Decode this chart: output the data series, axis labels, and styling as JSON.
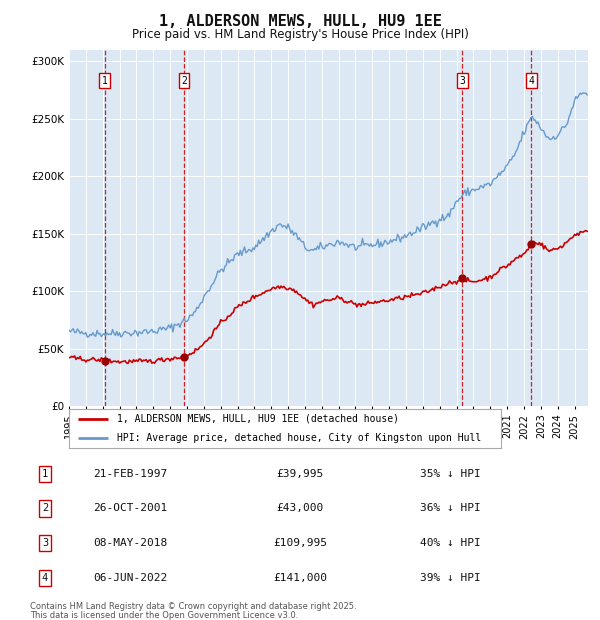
{
  "title": "1, ALDERSON MEWS, HULL, HU9 1EE",
  "subtitle": "Price paid vs. HM Land Registry's House Price Index (HPI)",
  "title_fontsize": 11,
  "subtitle_fontsize": 8.5,
  "background_color": "#ffffff",
  "plot_bg_color": "#dce9f5",
  "grid_color": "#ffffff",
  "legend_label_red": "1, ALDERSON MEWS, HULL, HU9 1EE (detached house)",
  "legend_label_blue": "HPI: Average price, detached house, City of Kingston upon Hull",
  "footer_line1": "Contains HM Land Registry data © Crown copyright and database right 2025.",
  "footer_line2": "This data is licensed under the Open Government Licence v3.0.",
  "transactions": [
    {
      "num": 1,
      "date": "21-FEB-1997",
      "price": 39995,
      "pct": "35%",
      "year": 1997.12
    },
    {
      "num": 2,
      "date": "26-OCT-2001",
      "price": 43000,
      "pct": "36%",
      "year": 2001.82
    },
    {
      "num": 3,
      "date": "08-MAY-2018",
      "price": 109995,
      "pct": "40%",
      "year": 2018.35
    },
    {
      "num": 4,
      "date": "06-JUN-2022",
      "price": 141000,
      "pct": "39%",
      "year": 2022.43
    }
  ],
  "ylim": [
    0,
    310000
  ],
  "xlim_start": 1995.0,
  "xlim_end": 2025.8,
  "yticks": [
    0,
    50000,
    100000,
    150000,
    200000,
    250000,
    300000
  ],
  "ytick_labels": [
    "£0",
    "£50K",
    "£100K",
    "£150K",
    "£200K",
    "£250K",
    "£300K"
  ],
  "xtick_years": [
    1995,
    1996,
    1997,
    1998,
    1999,
    2000,
    2001,
    2002,
    2003,
    2004,
    2005,
    2006,
    2007,
    2008,
    2009,
    2010,
    2011,
    2012,
    2013,
    2014,
    2015,
    2016,
    2017,
    2018,
    2019,
    2020,
    2021,
    2022,
    2023,
    2024,
    2025
  ],
  "red_color": "#cc0000",
  "blue_color": "#6699cc",
  "dashed_color": "#cc0000",
  "marker_color": "#990000",
  "hpi_anchors": [
    [
      1995.0,
      65000
    ],
    [
      1996.0,
      63500
    ],
    [
      1997.0,
      63000
    ],
    [
      1998.0,
      63500
    ],
    [
      1999.0,
      64000
    ],
    [
      2000.0,
      65000
    ],
    [
      2001.0,
      68000
    ],
    [
      2002.0,
      75000
    ],
    [
      2002.5,
      82000
    ],
    [
      2003.0,
      95000
    ],
    [
      2004.0,
      118000
    ],
    [
      2005.0,
      132000
    ],
    [
      2006.0,
      138000
    ],
    [
      2007.0,
      152000
    ],
    [
      2007.5,
      158000
    ],
    [
      2008.0,
      155000
    ],
    [
      2008.5,
      148000
    ],
    [
      2009.0,
      138000
    ],
    [
      2009.5,
      135000
    ],
    [
      2010.0,
      138000
    ],
    [
      2011.0,
      143000
    ],
    [
      2012.0,
      138000
    ],
    [
      2013.0,
      140000
    ],
    [
      2014.0,
      143000
    ],
    [
      2015.0,
      148000
    ],
    [
      2016.0,
      155000
    ],
    [
      2017.0,
      163000
    ],
    [
      2017.5,
      165000
    ],
    [
      2018.0,
      178000
    ],
    [
      2018.5,
      185000
    ],
    [
      2019.0,
      188000
    ],
    [
      2020.0,
      193000
    ],
    [
      2021.0,
      208000
    ],
    [
      2021.5,
      220000
    ],
    [
      2022.0,
      238000
    ],
    [
      2022.5,
      252000
    ],
    [
      2023.0,
      242000
    ],
    [
      2023.5,
      232000
    ],
    [
      2024.0,
      236000
    ],
    [
      2024.5,
      244000
    ],
    [
      2025.0,
      265000
    ],
    [
      2025.4,
      272000
    ]
  ],
  "red_anchors": [
    [
      1995.0,
      42000
    ],
    [
      1996.0,
      40500
    ],
    [
      1997.12,
      39995
    ],
    [
      1998.0,
      38500
    ],
    [
      1999.0,
      38800
    ],
    [
      2000.0,
      39200
    ],
    [
      2001.82,
      43000
    ],
    [
      2002.5,
      48000
    ],
    [
      2003.0,
      54000
    ],
    [
      2004.0,
      72000
    ],
    [
      2005.0,
      86000
    ],
    [
      2006.0,
      95000
    ],
    [
      2007.0,
      102000
    ],
    [
      2007.5,
      104000
    ],
    [
      2008.0,
      103000
    ],
    [
      2008.5,
      100000
    ],
    [
      2009.0,
      93000
    ],
    [
      2009.5,
      88000
    ],
    [
      2010.0,
      91000
    ],
    [
      2011.0,
      94000
    ],
    [
      2011.5,
      91500
    ],
    [
      2012.0,
      88500
    ],
    [
      2012.5,
      88000
    ],
    [
      2013.0,
      90000
    ],
    [
      2014.0,
      92000
    ],
    [
      2015.0,
      95000
    ],
    [
      2016.0,
      98000
    ],
    [
      2017.0,
      104000
    ],
    [
      2017.5,
      107000
    ],
    [
      2018.35,
      109995
    ],
    [
      2018.5,
      109500
    ],
    [
      2019.0,
      108000
    ],
    [
      2019.5,
      110000
    ],
    [
      2020.0,
      112000
    ],
    [
      2020.5,
      118000
    ],
    [
      2021.0,
      122000
    ],
    [
      2021.5,
      128000
    ],
    [
      2022.0,
      132000
    ],
    [
      2022.43,
      141000
    ],
    [
      2022.7,
      143000
    ],
    [
      2023.0,
      141000
    ],
    [
      2023.3,
      137000
    ],
    [
      2023.5,
      135000
    ],
    [
      2024.0,
      137000
    ],
    [
      2024.5,
      142000
    ],
    [
      2025.0,
      149000
    ],
    [
      2025.4,
      151000
    ]
  ]
}
